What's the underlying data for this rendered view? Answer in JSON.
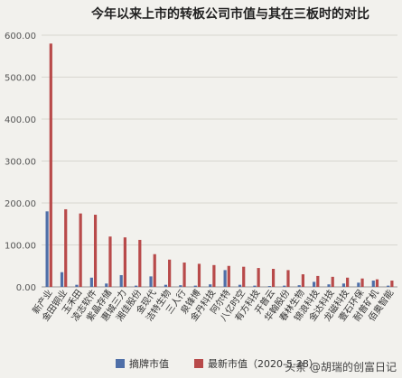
{
  "chart_data": {
    "type": "bar",
    "title": "今年以来上市的转板公司市值与其在三板时的对比",
    "categories": [
      "新产业",
      "金田铜业",
      "玉禾田",
      "凌志软件",
      "紫晶存储",
      "惠城三力",
      "湘佳股份",
      "金现代",
      "洁特生物",
      "三人行",
      "泉锋博",
      "金丹科技",
      "阿尔特",
      "八亿时空",
      "有方科技",
      "开普云",
      "华翰股份",
      "春林生物",
      "锦浪科技",
      "金达科技",
      "龙磁科技",
      "壹石环保",
      "耐普矿机",
      "佰奥智能"
    ],
    "series": [
      {
        "name": "摘牌市值",
        "color": "#4f6fa8",
        "values": [
          180,
          35,
          5,
          22,
          8,
          28,
          3,
          25,
          5,
          4,
          3,
          6,
          40,
          5,
          3,
          2,
          3,
          4,
          12,
          6,
          8,
          10,
          15,
          3
        ]
      },
      {
        "name": "最新市值（2020-5-28）",
        "color": "#b84a4a",
        "values": [
          580,
          185,
          175,
          172,
          120,
          118,
          112,
          78,
          65,
          58,
          55,
          52,
          50,
          48,
          45,
          43,
          40,
          30,
          26,
          24,
          22,
          20,
          18,
          15
        ]
      }
    ],
    "ylim": [
      0,
      600
    ],
    "yticks": [
      "0.00",
      "100.00",
      "200.00",
      "300.00",
      "400.00",
      "500.00",
      "600.00"
    ],
    "grid": true,
    "legend_position": "bottom"
  },
  "legend": {
    "item1": "摘牌市值",
    "item2": "最新市值（2020-5-28）"
  },
  "watermark": "头条 @胡瑞的创富日记"
}
